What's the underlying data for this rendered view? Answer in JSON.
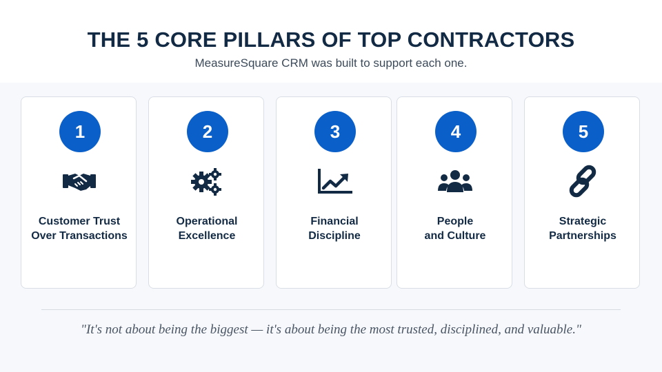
{
  "header": {
    "title": "THE 5 CORE PILLARS OF TOP CONTRACTORS",
    "subtitle": "MeasureSquare CRM was built to support each one."
  },
  "colors": {
    "accent": "#0a5fc8",
    "navy": "#132a44",
    "background": "#f6f8fc"
  },
  "pillars": [
    {
      "number": "1",
      "icon": "handshake-icon",
      "line1": "Customer Trust",
      "line2": "Over Transactions"
    },
    {
      "number": "2",
      "icon": "gears-icon",
      "line1": "Operational",
      "line2": "Excellence"
    },
    {
      "number": "3",
      "icon": "chart-line-icon",
      "line1": "Financial",
      "line2": "Discipline"
    },
    {
      "number": "4",
      "icon": "people-icon",
      "line1": "People",
      "line2": "and Culture"
    },
    {
      "number": "5",
      "icon": "link-icon",
      "line1": "Strategic",
      "line2": "Partnerships"
    }
  ],
  "quote": "\"It's not about being the biggest — it's about being the most trusted, disciplined, and valuable.\""
}
